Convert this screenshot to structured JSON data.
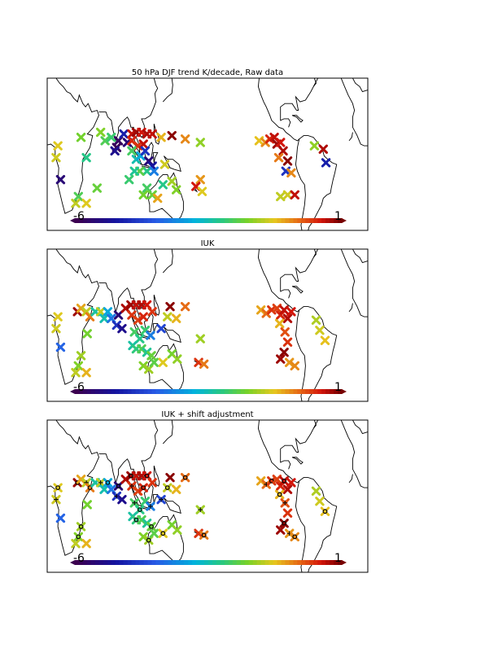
{
  "figure": {
    "colorbar": {
      "min_label": "-6",
      "max_label": "1",
      "min": -6,
      "max": 1
    }
  },
  "chart_data": [
    {
      "type": "scatter",
      "title": "50 hPa DJF trend K/decade, Raw data",
      "colorbar_range": [
        -6,
        1
      ],
      "points": [
        {
          "lon": 12,
          "lat": 5,
          "trend": -0.8
        },
        {
          "lon": 10,
          "lat": -2,
          "trend": -0.9
        },
        {
          "lon": 15,
          "lat": -15,
          "trend": -5.5
        },
        {
          "lon": 38,
          "lat": 10,
          "trend": -1.5
        },
        {
          "lon": 44,
          "lat": -2,
          "trend": -2.2
        },
        {
          "lon": 35,
          "lat": -25,
          "trend": -1.8
        },
        {
          "lon": 32,
          "lat": -29,
          "trend": -1.0
        },
        {
          "lon": 44,
          "lat": -29,
          "trend": -0.8
        },
        {
          "lon": 56,
          "lat": -20,
          "trend": -1.6
        },
        {
          "lon": 60,
          "lat": 13,
          "trend": -1.4
        },
        {
          "lon": 65,
          "lat": 8,
          "trend": -1.8
        },
        {
          "lon": 72,
          "lat": 10,
          "trend": -2.0
        },
        {
          "lon": 80,
          "lat": 8,
          "trend": -5.8
        },
        {
          "lon": 78,
          "lat": 4,
          "trend": -5.9
        },
        {
          "lon": 76,
          "lat": 2,
          "trend": -5.2
        },
        {
          "lon": 86,
          "lat": 12,
          "trend": -4.8
        },
        {
          "lon": 90,
          "lat": 7,
          "trend": -5.5
        },
        {
          "lon": 95,
          "lat": 12,
          "trend": 0.6
        },
        {
          "lon": 100,
          "lat": 13,
          "trend": 0.8
        },
        {
          "lon": 106,
          "lat": 13,
          "trend": 0.5
        },
        {
          "lon": 112,
          "lat": 12,
          "trend": 0.7
        },
        {
          "lon": 118,
          "lat": 12,
          "trend": 0.6
        },
        {
          "lon": 95,
          "lat": 8,
          "trend": 0.4
        },
        {
          "lon": 102,
          "lat": 5,
          "trend": 0.3
        },
        {
          "lon": 108,
          "lat": 6,
          "trend": 0.6
        },
        {
          "lon": 95,
          "lat": 2,
          "trend": -1.9
        },
        {
          "lon": 100,
          "lat": -3,
          "trend": -2.5
        },
        {
          "lon": 105,
          "lat": -1,
          "trend": -3.0
        },
        {
          "lon": 110,
          "lat": 2,
          "trend": -4.5
        },
        {
          "lon": 114,
          "lat": -4,
          "trend": -5.5
        },
        {
          "lon": 118,
          "lat": -7,
          "trend": -5.0
        },
        {
          "lon": 112,
          "lat": -10,
          "trend": -2.2
        },
        {
          "lon": 104,
          "lat": -10,
          "trend": -1.7
        },
        {
          "lon": 98,
          "lat": -10,
          "trend": -2.3
        },
        {
          "lon": 92,
          "lat": -15,
          "trend": -2.0
        },
        {
          "lon": 120,
          "lat": -10,
          "trend": -3.5
        },
        {
          "lon": 108,
          "lat": -24,
          "trend": -1.5
        },
        {
          "lon": 112,
          "lat": -20,
          "trend": -1.9
        },
        {
          "lon": 118,
          "lat": -24,
          "trend": -1.6
        },
        {
          "lon": 124,
          "lat": -26,
          "trend": -0.5
        },
        {
          "lon": 130,
          "lat": -18,
          "trend": -2.2
        },
        {
          "lon": 140,
          "lat": -16,
          "trend": -1.2
        },
        {
          "lon": 145,
          "lat": -21,
          "trend": -1.4
        },
        {
          "lon": 132,
          "lat": -6,
          "trend": -0.9
        },
        {
          "lon": 128,
          "lat": 10,
          "trend": -0.6
        },
        {
          "lon": 140,
          "lat": 11,
          "trend": 0.9
        },
        {
          "lon": 155,
          "lat": 9,
          "trend": -0.3
        },
        {
          "lon": 172,
          "lat": 7,
          "trend": -1.3
        },
        {
          "lon": 172,
          "lat": -15,
          "trend": -0.4
        },
        {
          "lon": 167,
          "lat": -19,
          "trend": 0.5
        },
        {
          "lon": 174,
          "lat": -22,
          "trend": -0.8
        },
        {
          "lon": 238,
          "lat": 8,
          "trend": -0.7
        },
        {
          "lon": 245,
          "lat": 7,
          "trend": -0.3
        },
        {
          "lon": 250,
          "lat": 9,
          "trend": 0.4
        },
        {
          "lon": 255,
          "lat": 10,
          "trend": 0.6
        },
        {
          "lon": 258,
          "lat": 6,
          "trend": 0.8
        },
        {
          "lon": 262,
          "lat": 7,
          "trend": 0.5
        },
        {
          "lon": 265,
          "lat": 2,
          "trend": 0.7
        },
        {
          "lon": 260,
          "lat": -2,
          "trend": -0.2
        },
        {
          "lon": 270,
          "lat": -4,
          "trend": 0.9
        },
        {
          "lon": 268,
          "lat": -10,
          "trend": -4.5
        },
        {
          "lon": 274,
          "lat": -11,
          "trend": -0.3
        },
        {
          "lon": 262,
          "lat": -25,
          "trend": -1.0
        },
        {
          "lon": 270,
          "lat": -24,
          "trend": -0.9
        },
        {
          "lon": 278,
          "lat": -24,
          "trend": 0.6
        },
        {
          "lon": 300,
          "lat": 5,
          "trend": -1.3
        },
        {
          "lon": 310,
          "lat": 3,
          "trend": 0.7
        },
        {
          "lon": 313,
          "lat": -5,
          "trend": -4.8
        }
      ]
    },
    {
      "type": "scatter",
      "title": "IUK",
      "colorbar_range": [
        -6,
        1
      ],
      "points": [
        {
          "lon": 12,
          "lat": 5,
          "trend": -0.8
        },
        {
          "lon": 10,
          "lat": -2,
          "trend": -0.9
        },
        {
          "lon": 15,
          "lat": -13,
          "trend": -3.8
        },
        {
          "lon": 34,
          "lat": 8,
          "trend": 0.8
        },
        {
          "lon": 38,
          "lat": 10,
          "trend": -0.5
        },
        {
          "lon": 44,
          "lat": 8,
          "trend": -1.0
        },
        {
          "lon": 48,
          "lat": 5,
          "trend": -0.2
        },
        {
          "lon": 54,
          "lat": 8,
          "trend": -2.4
        },
        {
          "lon": 45,
          "lat": -5,
          "trend": -1.5
        },
        {
          "lon": 35,
          "lat": -24,
          "trend": -1.4
        },
        {
          "lon": 32,
          "lat": -28,
          "trend": -1.0
        },
        {
          "lon": 44,
          "lat": -28,
          "trend": -0.6
        },
        {
          "lon": 38,
          "lat": -18,
          "trend": -1.2
        },
        {
          "lon": 60,
          "lat": 8,
          "trend": -1.0
        },
        {
          "lon": 64,
          "lat": 4,
          "trend": -2.5
        },
        {
          "lon": 68,
          "lat": 8,
          "trend": -3.0
        },
        {
          "lon": 72,
          "lat": 4,
          "trend": -3.6
        },
        {
          "lon": 78,
          "lat": 0,
          "trend": -4.5
        },
        {
          "lon": 80,
          "lat": 6,
          "trend": -5.5
        },
        {
          "lon": 84,
          "lat": -2,
          "trend": -5.2
        },
        {
          "lon": 88,
          "lat": 10,
          "trend": 0.7
        },
        {
          "lon": 94,
          "lat": 12,
          "trend": 0.8
        },
        {
          "lon": 100,
          "lat": 12,
          "trend": 0.6
        },
        {
          "lon": 106,
          "lat": 12,
          "trend": 0.7
        },
        {
          "lon": 112,
          "lat": 12,
          "trend": 0.5
        },
        {
          "lon": 95,
          "lat": 6,
          "trend": 0.3
        },
        {
          "lon": 102,
          "lat": 3,
          "trend": 0.2
        },
        {
          "lon": 108,
          "lat": 5,
          "trend": 0.4
        },
        {
          "lon": 118,
          "lat": 8,
          "trend": 0.3
        },
        {
          "lon": 98,
          "lat": -4,
          "trend": -1.9
        },
        {
          "lon": 104,
          "lat": -8,
          "trend": -2.2
        },
        {
          "lon": 110,
          "lat": -3,
          "trend": -2.0
        },
        {
          "lon": 96,
          "lat": -12,
          "trend": -2.4
        },
        {
          "lon": 100,
          "lat": -14,
          "trend": -2.1
        },
        {
          "lon": 106,
          "lat": -14,
          "trend": -1.8
        },
        {
          "lon": 112,
          "lat": -16,
          "trend": -2.3
        },
        {
          "lon": 117,
          "lat": -18,
          "trend": -1.6
        },
        {
          "lon": 116,
          "lat": -6,
          "trend": -3.5
        },
        {
          "lon": 108,
          "lat": -24,
          "trend": -1.4
        },
        {
          "lon": 114,
          "lat": -26,
          "trend": -1.2
        },
        {
          "lon": 120,
          "lat": -22,
          "trend": -1.7
        },
        {
          "lon": 128,
          "lat": -2,
          "trend": -4.2
        },
        {
          "lon": 130,
          "lat": -22,
          "trend": -0.8
        },
        {
          "lon": 140,
          "lat": -17,
          "trend": -1.5
        },
        {
          "lon": 146,
          "lat": -20,
          "trend": -1.3
        },
        {
          "lon": 135,
          "lat": 5,
          "trend": -1.0
        },
        {
          "lon": 138,
          "lat": 11,
          "trend": 0.9
        },
        {
          "lon": 145,
          "lat": 4,
          "trend": -0.6
        },
        {
          "lon": 155,
          "lat": 11,
          "trend": -0.1
        },
        {
          "lon": 172,
          "lat": -8,
          "trend": -1.2
        },
        {
          "lon": 170,
          "lat": -22,
          "trend": 0.3
        },
        {
          "lon": 176,
          "lat": -23,
          "trend": -0.2
        },
        {
          "lon": 240,
          "lat": 9,
          "trend": -0.5
        },
        {
          "lon": 246,
          "lat": 7,
          "trend": -0.1
        },
        {
          "lon": 252,
          "lat": 9,
          "trend": 0.3
        },
        {
          "lon": 258,
          "lat": 10,
          "trend": 0.2
        },
        {
          "lon": 262,
          "lat": 6,
          "trend": 0.4
        },
        {
          "lon": 266,
          "lat": 9,
          "trend": 0.6
        },
        {
          "lon": 270,
          "lat": 4,
          "trend": 0.7
        },
        {
          "lon": 274,
          "lat": 8,
          "trend": 0.5
        },
        {
          "lon": 261,
          "lat": 1,
          "trend": -0.6
        },
        {
          "lon": 267,
          "lat": -4,
          "trend": 0.1
        },
        {
          "lon": 270,
          "lat": -10,
          "trend": 0.3
        },
        {
          "lon": 266,
          "lat": -16,
          "trend": 0.9
        },
        {
          "lon": 262,
          "lat": -20,
          "trend": 0.8
        },
        {
          "lon": 272,
          "lat": -22,
          "trend": -0.4
        },
        {
          "lon": 278,
          "lat": -24,
          "trend": -0.3
        },
        {
          "lon": 302,
          "lat": 3,
          "trend": -1.1
        },
        {
          "lon": 306,
          "lat": -3,
          "trend": -0.9
        },
        {
          "lon": 312,
          "lat": -9,
          "trend": -0.7
        }
      ]
    },
    {
      "type": "scatter",
      "title": "IUK + shift adjustment",
      "colorbar_range": [
        -6,
        1
      ],
      "points": [
        {
          "lon": 12,
          "lat": 5,
          "trend": -0.8
        },
        {
          "lon": 10,
          "lat": -2,
          "trend": -0.9
        },
        {
          "lon": 15,
          "lat": -13,
          "trend": -3.8
        },
        {
          "lon": 34,
          "lat": 8,
          "trend": 0.8
        },
        {
          "lon": 38,
          "lat": 10,
          "trend": -0.5
        },
        {
          "lon": 44,
          "lat": 8,
          "trend": -1.0
        },
        {
          "lon": 48,
          "lat": 5,
          "trend": -0.2
        },
        {
          "lon": 54,
          "lat": 8,
          "trend": -2.4
        },
        {
          "lon": 45,
          "lat": -5,
          "trend": -1.5
        },
        {
          "lon": 35,
          "lat": -24,
          "trend": -1.4
        },
        {
          "lon": 32,
          "lat": -28,
          "trend": -1.0
        },
        {
          "lon": 44,
          "lat": -28,
          "trend": -0.6
        },
        {
          "lon": 38,
          "lat": -18,
          "trend": -1.2
        },
        {
          "lon": 60,
          "lat": 8,
          "trend": -1.0
        },
        {
          "lon": 64,
          "lat": 4,
          "trend": -2.5
        },
        {
          "lon": 68,
          "lat": 8,
          "trend": -3.0
        },
        {
          "lon": 72,
          "lat": 4,
          "trend": -3.6
        },
        {
          "lon": 78,
          "lat": 0,
          "trend": -4.5
        },
        {
          "lon": 80,
          "lat": 6,
          "trend": -5.5
        },
        {
          "lon": 84,
          "lat": -2,
          "trend": -5.2
        },
        {
          "lon": 88,
          "lat": 10,
          "trend": 0.7
        },
        {
          "lon": 94,
          "lat": 12,
          "trend": 0.8
        },
        {
          "lon": 100,
          "lat": 12,
          "trend": 0.6
        },
        {
          "lon": 106,
          "lat": 12,
          "trend": 0.7
        },
        {
          "lon": 112,
          "lat": 12,
          "trend": 0.5
        },
        {
          "lon": 95,
          "lat": 6,
          "trend": 0.3
        },
        {
          "lon": 102,
          "lat": 3,
          "trend": 0.2
        },
        {
          "lon": 108,
          "lat": 5,
          "trend": 0.4
        },
        {
          "lon": 118,
          "lat": 8,
          "trend": 0.3
        },
        {
          "lon": 98,
          "lat": -4,
          "trend": -1.9
        },
        {
          "lon": 104,
          "lat": -8,
          "trend": -2.2
        },
        {
          "lon": 110,
          "lat": -3,
          "trend": -2.0
        },
        {
          "lon": 96,
          "lat": -12,
          "trend": -2.4
        },
        {
          "lon": 100,
          "lat": -14,
          "trend": -2.1
        },
        {
          "lon": 106,
          "lat": -14,
          "trend": -1.8
        },
        {
          "lon": 112,
          "lat": -16,
          "trend": -2.3
        },
        {
          "lon": 117,
          "lat": -18,
          "trend": -1.6
        },
        {
          "lon": 116,
          "lat": -6,
          "trend": -3.5
        },
        {
          "lon": 108,
          "lat": -24,
          "trend": -1.4
        },
        {
          "lon": 114,
          "lat": -26,
          "trend": -1.2
        },
        {
          "lon": 120,
          "lat": -22,
          "trend": -1.7
        },
        {
          "lon": 128,
          "lat": -2,
          "trend": -4.2
        },
        {
          "lon": 130,
          "lat": -22,
          "trend": -0.8
        },
        {
          "lon": 140,
          "lat": -17,
          "trend": -1.5
        },
        {
          "lon": 146,
          "lat": -20,
          "trend": -1.3
        },
        {
          "lon": 135,
          "lat": 5,
          "trend": -1.0
        },
        {
          "lon": 138,
          "lat": 11,
          "trend": 0.9
        },
        {
          "lon": 145,
          "lat": 4,
          "trend": -0.6
        },
        {
          "lon": 155,
          "lat": 11,
          "trend": -0.1
        },
        {
          "lon": 172,
          "lat": -8,
          "trend": -1.2
        },
        {
          "lon": 170,
          "lat": -22,
          "trend": 0.3
        },
        {
          "lon": 176,
          "lat": -23,
          "trend": -0.2
        },
        {
          "lon": 240,
          "lat": 9,
          "trend": -0.5
        },
        {
          "lon": 246,
          "lat": 7,
          "trend": -0.1
        },
        {
          "lon": 252,
          "lat": 9,
          "trend": 0.3
        },
        {
          "lon": 258,
          "lat": 10,
          "trend": 0.2
        },
        {
          "lon": 262,
          "lat": 6,
          "trend": 0.4
        },
        {
          "lon": 266,
          "lat": 9,
          "trend": 0.6
        },
        {
          "lon": 270,
          "lat": 4,
          "trend": 0.7
        },
        {
          "lon": 274,
          "lat": 8,
          "trend": 0.5
        },
        {
          "lon": 261,
          "lat": 1,
          "trend": -0.6
        },
        {
          "lon": 267,
          "lat": -4,
          "trend": 0.1
        },
        {
          "lon": 270,
          "lat": -10,
          "trend": 0.3
        },
        {
          "lon": 266,
          "lat": -16,
          "trend": 0.9
        },
        {
          "lon": 262,
          "lat": -20,
          "trend": 0.8
        },
        {
          "lon": 272,
          "lat": -22,
          "trend": -0.4
        },
        {
          "lon": 278,
          "lat": -24,
          "trend": -0.3
        },
        {
          "lon": 302,
          "lat": 3,
          "trend": -1.1
        },
        {
          "lon": 306,
          "lat": -3,
          "trend": -0.9
        },
        {
          "lon": 312,
          "lat": -9,
          "trend": -0.7
        }
      ]
    }
  ]
}
